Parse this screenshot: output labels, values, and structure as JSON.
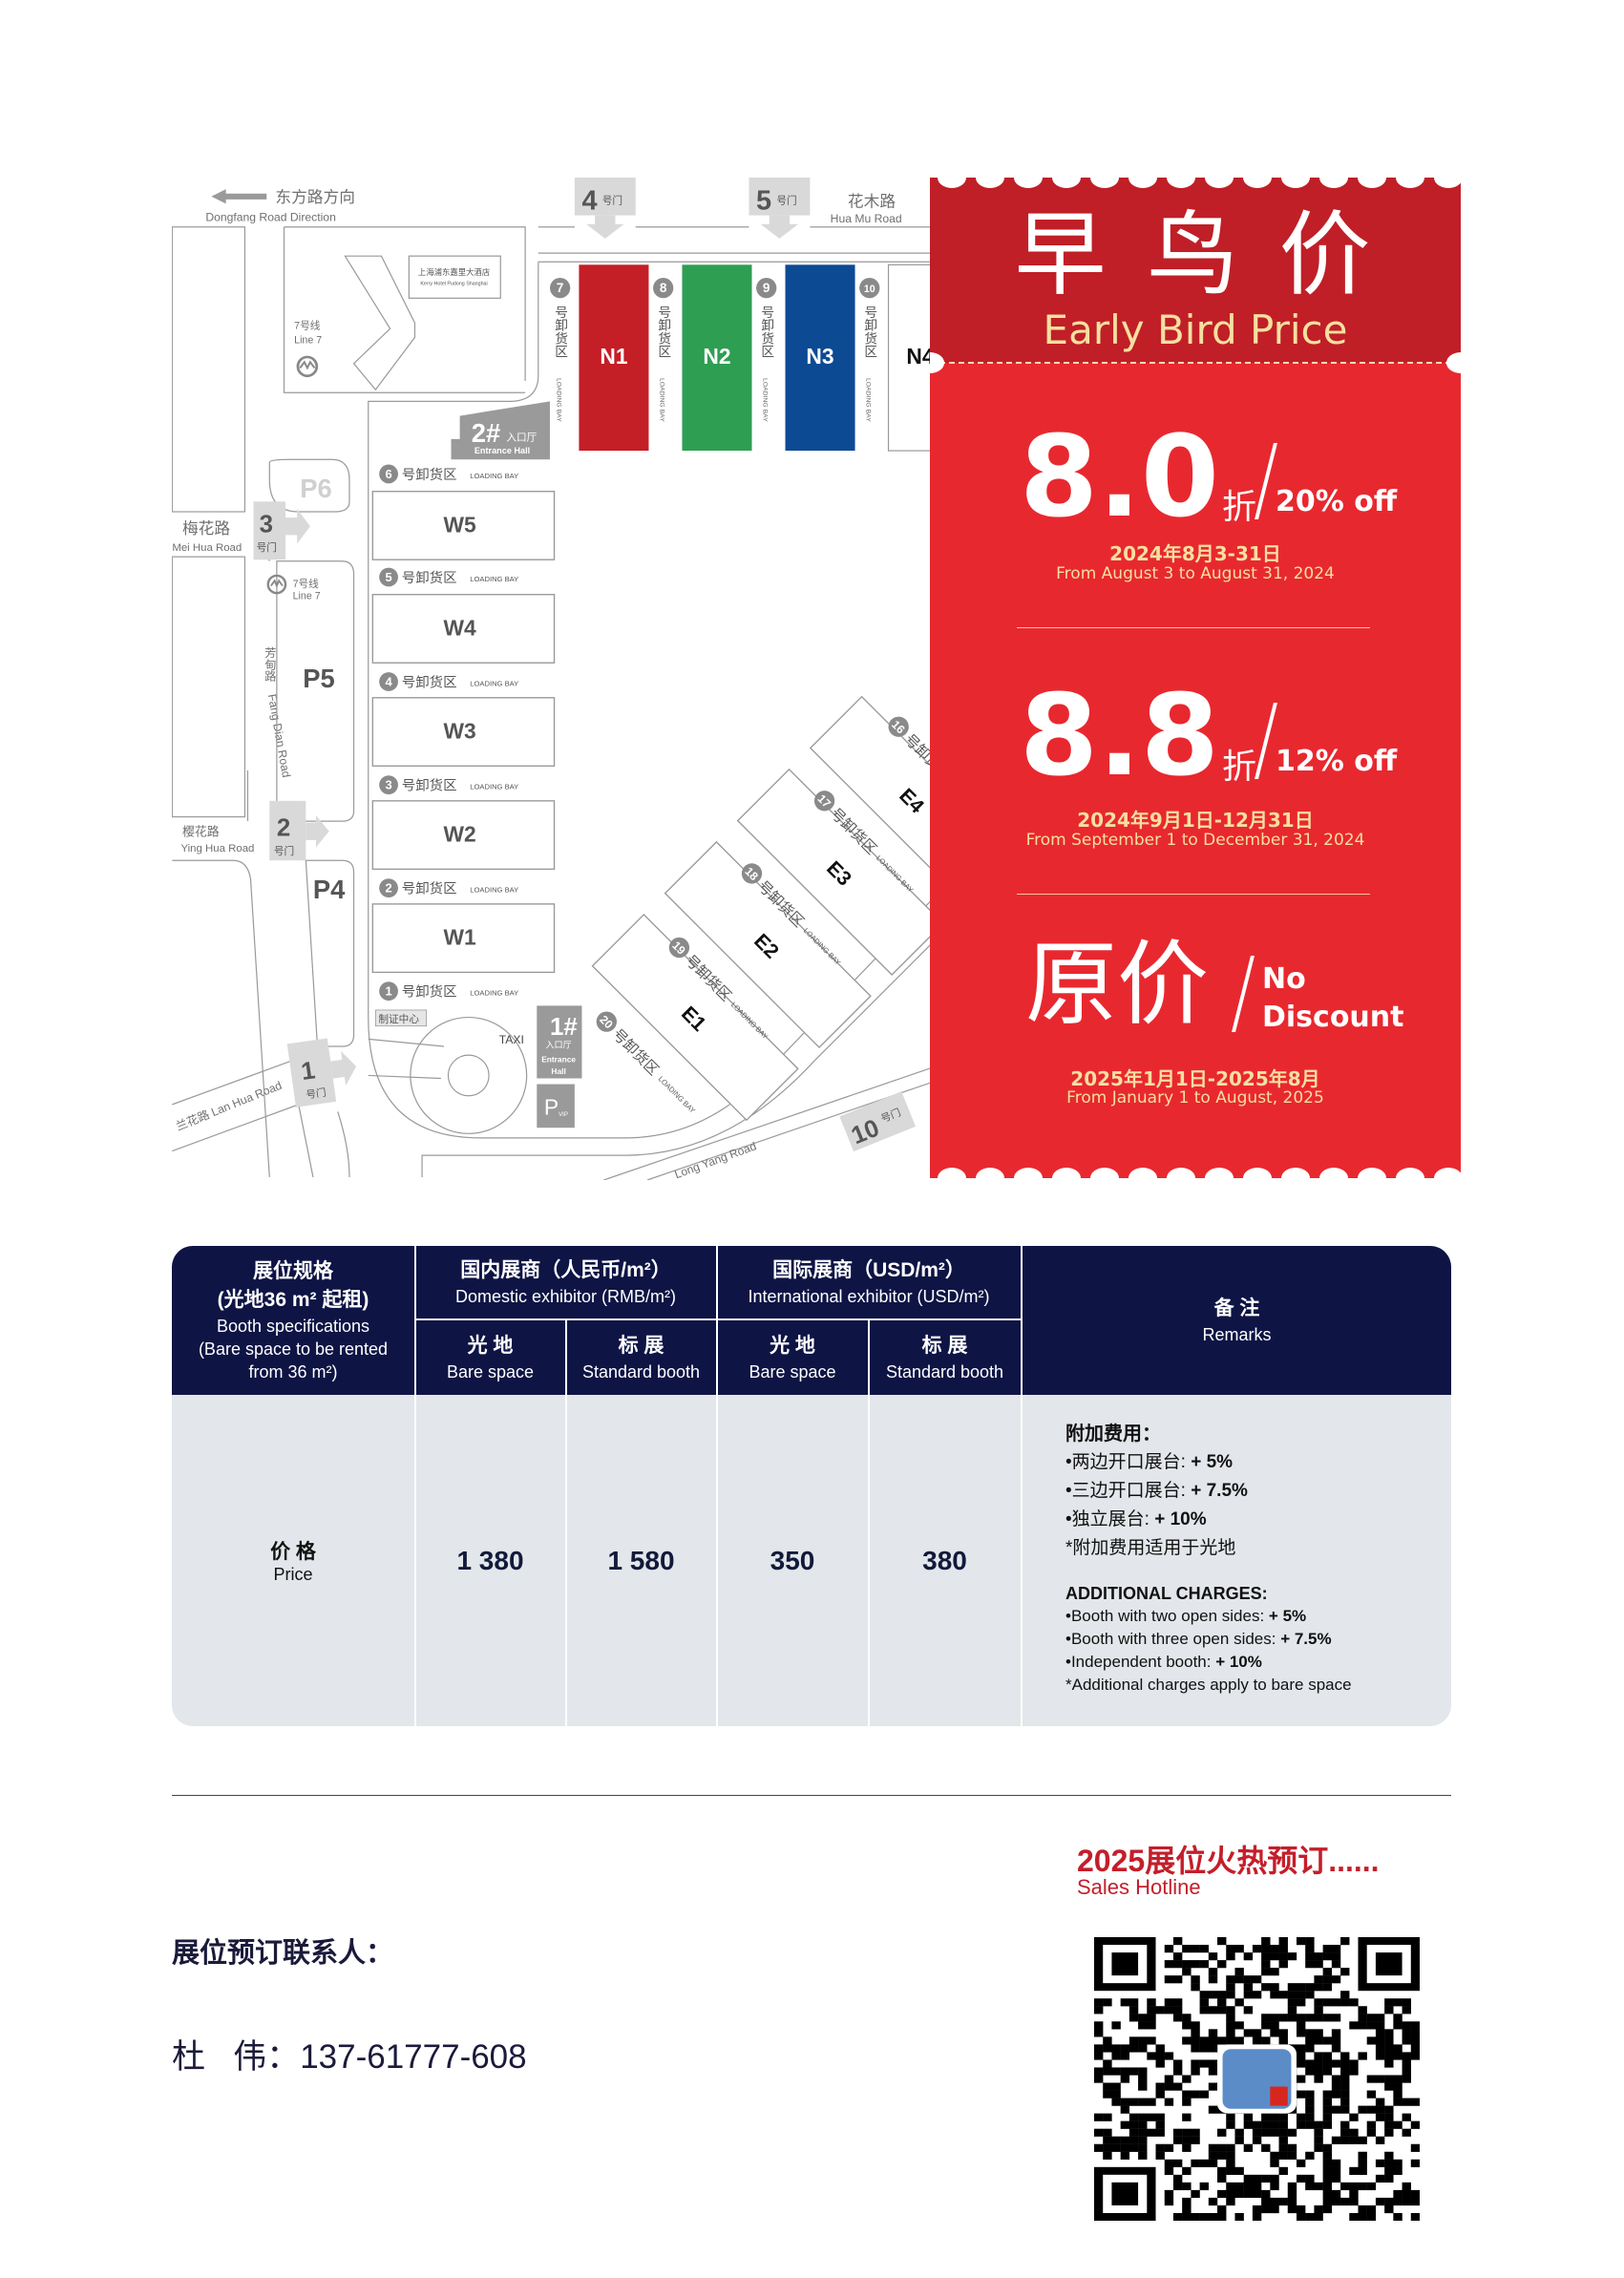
{
  "map": {
    "direction_cn": "东方路方向",
    "direction_en": "Dongfang Road Direction",
    "roads": {
      "huamu_cn": "花木路",
      "huamu_en": "Hua Mu Road",
      "meihua_cn": "梅花路",
      "meihua_en": "Mei Hua Road",
      "yinghua_cn": "樱花路",
      "yinghua_en": "Ying Hua Road",
      "fangdian_cn": "芳甸路",
      "fangdian_en": "Fang Dian Road",
      "lanhua": "兰花路 Lan Hua Road",
      "longyang": "Long Yang Road"
    },
    "gate_suffix": "号门",
    "gates": {
      "g1": "1",
      "g2": "2",
      "g3": "3",
      "g4": "4",
      "g5": "5",
      "g10": "10"
    },
    "hotel_cn": "上海浦东嘉里大酒店",
    "hotel_en": "Kerry Hotel Pudong Shanghai",
    "metro_cn": "7号线",
    "metro_en": "Line 7",
    "entrance": {
      "e2": "2#",
      "e1": "1#",
      "cn": "入口厅",
      "en": "Entrance Hall",
      "en1": "Entrance",
      "en2": "Hall"
    },
    "parking": {
      "p4": "P4",
      "p5": "P5",
      "p6": "P6",
      "pvip": "P",
      "vip": "VIP"
    },
    "cert_center": "制证中心",
    "taxi": "TAXI",
    "bay_cn": "号卸货区",
    "bay_en": "LOADING BAY",
    "north_halls": [
      {
        "name": "N1",
        "color": "#c41e26"
      },
      {
        "name": "N2",
        "color": "#2e9e52"
      },
      {
        "name": "N3",
        "color": "#0d4a94"
      },
      {
        "name": "N4",
        "color": "#ffffff"
      }
    ],
    "north_bays": [
      "7",
      "8",
      "9",
      "10"
    ],
    "west_halls": [
      "W5",
      "W4",
      "W3",
      "W2",
      "W1"
    ],
    "west_bays": [
      "6",
      "5",
      "4",
      "3",
      "2",
      "1"
    ],
    "east_halls": [
      "E1",
      "E2",
      "E3",
      "E4"
    ],
    "east_bays": [
      "20",
      "19",
      "18",
      "17",
      "16"
    ]
  },
  "promo": {
    "title_cn": "早 鸟 价",
    "title_en": "Early Bird Price",
    "tiers": [
      {
        "discount": "8.0",
        "unit": "折",
        "off": "20% off",
        "date_cn": "2024年8月3-31日",
        "date_en": "From August 3 to August 31, 2024"
      },
      {
        "discount": "8.8",
        "unit": "折",
        "off": "12% off",
        "date_cn": "2024年9月1日-12月31日",
        "date_en": "From September 1 to December 31, 2024"
      },
      {
        "discount": "原价",
        "off_line1": "No",
        "off_line2": "Discount",
        "date_cn": "2025年1月1日-2025年8月",
        "date_en": "From January 1 to August, 2025"
      }
    ],
    "colors": {
      "top": "#c01f27",
      "body": "#e8282f",
      "accent": "#f6dfa0"
    }
  },
  "table": {
    "spec_header": {
      "cn1": "展位规格",
      "cn2": "(光地36 m² 起租)",
      "en1": "Booth specifications",
      "en2": "(Bare space to be rented",
      "en3": "from 36 m²)"
    },
    "domestic": {
      "cn": "国内展商（人民币/m²）",
      "en": "Domestic exhibitor (RMB/m²)"
    },
    "international": {
      "cn": "国际展商（USD/m²）",
      "en": "International exhibitor (USD/m²)"
    },
    "remarks_header": {
      "cn": "备 注",
      "en": "Remarks"
    },
    "sub_headers": [
      {
        "cn": "光 地",
        "en": "Bare space"
      },
      {
        "cn": "标 展",
        "en": "Standard booth"
      },
      {
        "cn": "光 地",
        "en": "Bare space"
      },
      {
        "cn": "标 展",
        "en": "Standard booth"
      }
    ],
    "row_label": {
      "cn": "价 格",
      "en": "Price"
    },
    "prices": [
      "1 380",
      "1 580",
      "350",
      "380"
    ],
    "remarks": {
      "cn_title": "附加费用：",
      "cn_items": [
        {
          "text": "•两边开口展台: ",
          "value": "+ 5%"
        },
        {
          "text": "•三边开口展台: ",
          "value": "+ 7.5%"
        },
        {
          "text": "•独立展台: ",
          "value": "+ 10%"
        }
      ],
      "cn_note": "*附加费用适用于光地",
      "en_title": "ADDITIONAL CHARGES:",
      "en_items": [
        {
          "text": "•Booth with two open sides: ",
          "value": "+ 5%"
        },
        {
          "text": "•Booth with three open sides: ",
          "value": "+ 7.5%"
        },
        {
          "text": "•Independent booth: ",
          "value": "+ 10%"
        }
      ],
      "en_note": "*Additional charges apply to bare space"
    },
    "colors": {
      "header": "#0e1444",
      "body": "#e3e6ea"
    }
  },
  "footer": {
    "hotline_cn": "2025展位火热预订......",
    "hotline_en": "Sales Hotline",
    "contact_title": "展位预订联系人：",
    "contact_name": "杜   伟：",
    "contact_phone": "137-61777-608",
    "qr_icon": "qr-code"
  }
}
